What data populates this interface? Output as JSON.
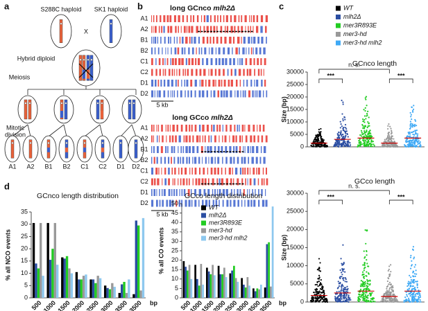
{
  "panels": [
    "a",
    "b",
    "c",
    "d"
  ],
  "diagram_a": {
    "parents": [
      "S288C haploid",
      "SK1 haploid"
    ],
    "cross": "X",
    "hybrid": "Hybrid diploid",
    "meiosis": "Meiosis",
    "mitotic": [
      "Mitotic",
      "division"
    ],
    "spores": [
      "A1",
      "A2",
      "B1",
      "B2",
      "C1",
      "C2",
      "D1",
      "D2"
    ]
  },
  "panel_b": {
    "blocks": [
      {
        "title": [
          "long GCnco",
          "mlh2Δ"
        ],
        "rows": [
          "A1",
          "A2",
          "B1",
          "B2",
          "C1",
          "C2",
          "D1",
          "D2"
        ],
        "scale": "5 kb"
      },
      {
        "title": [
          "long GCco",
          "mlh2Δ"
        ],
        "rows": [
          "A1",
          "A2",
          "B1",
          "B2",
          "C1",
          "C2",
          "D1",
          "D2"
        ],
        "scale": "5 kb"
      }
    ]
  },
  "chart_data": [
    {
      "type": "dotplot",
      "title": "GCnco length",
      "y_label": "Size (bp)",
      "ylim": [
        0,
        30000
      ],
      "yticks": [
        0,
        5000,
        10000,
        15000,
        20000,
        25000,
        30000
      ],
      "annotations": [
        "n. s.",
        "***",
        "***"
      ],
      "series": [
        {
          "name": "WT",
          "color": "#000000",
          "values": [
            1500
          ]
        },
        {
          "name": "mlh2Δ",
          "color": "#2b4ea2",
          "values": [
            3000
          ]
        },
        {
          "name": "mer3R893E",
          "color": "#22cc22",
          "values": [
            3500
          ]
        },
        {
          "name": "mer3-hd",
          "color": "#999999",
          "values": [
            1500
          ]
        },
        {
          "name": "mer3-hd mlh2",
          "color": "#3fa9f5",
          "values": [
            3500
          ]
        }
      ]
    },
    {
      "type": "dotplot",
      "title": "GCco length",
      "y_label": "Size (bp)",
      "ylim": [
        0,
        30000
      ],
      "yticks": [
        0,
        5000,
        10000,
        15000,
        20000,
        25000,
        30000
      ],
      "annotations": [
        "n. s.",
        "***",
        "***"
      ],
      "series": [
        {
          "name": "WT",
          "color": "#000000",
          "values": [
            1800
          ]
        },
        {
          "name": "mlh2Δ",
          "color": "#2b4ea2",
          "values": [
            2500
          ]
        },
        {
          "name": "mer3R893E",
          "color": "#22cc22",
          "values": [
            3000
          ]
        },
        {
          "name": "mer3-hd",
          "color": "#999999",
          "values": [
            1500
          ]
        },
        {
          "name": "mer3-hd mlh2",
          "color": "#3fa9f5",
          "values": [
            3000
          ]
        }
      ]
    },
    {
      "type": "bar",
      "title": "GCnco length distribution",
      "y_label": "% all NCO events",
      "x_unit": "bp",
      "categories": [
        "500",
        "1000",
        "1500",
        "2000",
        "2500",
        "3000",
        "3500",
        ">3500"
      ],
      "ylim": [
        0,
        35
      ],
      "yticks": [
        0,
        5,
        10,
        15,
        20,
        25,
        30,
        35
      ],
      "legend": false,
      "series": [
        {
          "name": "WT",
          "color": "#000000",
          "values": [
            30.5,
            30.5,
            16.5,
            10.5,
            7.5,
            5,
            2,
            1.5
          ]
        },
        {
          "name": "mlh2Δ",
          "color": "#2b4ea2",
          "values": [
            14,
            15.5,
            16,
            7.5,
            7.5,
            4,
            5.5,
            31.5
          ]
        },
        {
          "name": "mer3R893E",
          "color": "#22cc22",
          "values": [
            12,
            20,
            17,
            7.5,
            6,
            3.5,
            6.5,
            29.5
          ]
        },
        {
          "name": "mer3-hd",
          "color": "#999999",
          "values": [
            30.5,
            30.5,
            12,
            9,
            9,
            6,
            2,
            3
          ]
        },
        {
          "name": "mer3-hd mlh2",
          "color": "#8ec8ef",
          "values": [
            9,
            13.5,
            10,
            9.5,
            8,
            4.5,
            7.5,
            32.5
          ]
        }
      ]
    },
    {
      "type": "bar",
      "title": "GCco length distribution",
      "y_label": "% all CO events",
      "x_unit": "bp",
      "categories": [
        "500",
        "1000",
        "1500",
        "2000",
        "2500",
        "3000",
        "3500",
        ">3500"
      ],
      "ylim": [
        0,
        50
      ],
      "yticks": [
        0,
        5,
        10,
        15,
        20,
        25,
        30,
        35,
        40,
        45,
        50
      ],
      "legend": true,
      "series": [
        {
          "name": "WT",
          "color": "#000000",
          "values": [
            19.5,
            17.5,
            16,
            17,
            13,
            10.5,
            5,
            5.5
          ]
        },
        {
          "name": "mlh2Δ",
          "color": "#2b4ea2",
          "values": [
            16.5,
            10,
            14,
            12.5,
            14.5,
            7,
            3.5,
            28.5
          ]
        },
        {
          "name": "mer3R893E",
          "color": "#22cc22",
          "values": [
            14.5,
            6.5,
            12.5,
            12.5,
            17,
            5.5,
            5,
            29.5
          ]
        },
        {
          "name": "mer3-hd",
          "color": "#999999",
          "values": [
            17.5,
            18,
            17.5,
            16,
            10.5,
            11,
            4.5,
            6
          ]
        },
        {
          "name": "mer3-hd mlh2",
          "color": "#8ec8ef",
          "values": [
            10,
            7,
            12,
            11,
            8.5,
            6.5,
            7,
            48.5
          ]
        }
      ]
    }
  ]
}
